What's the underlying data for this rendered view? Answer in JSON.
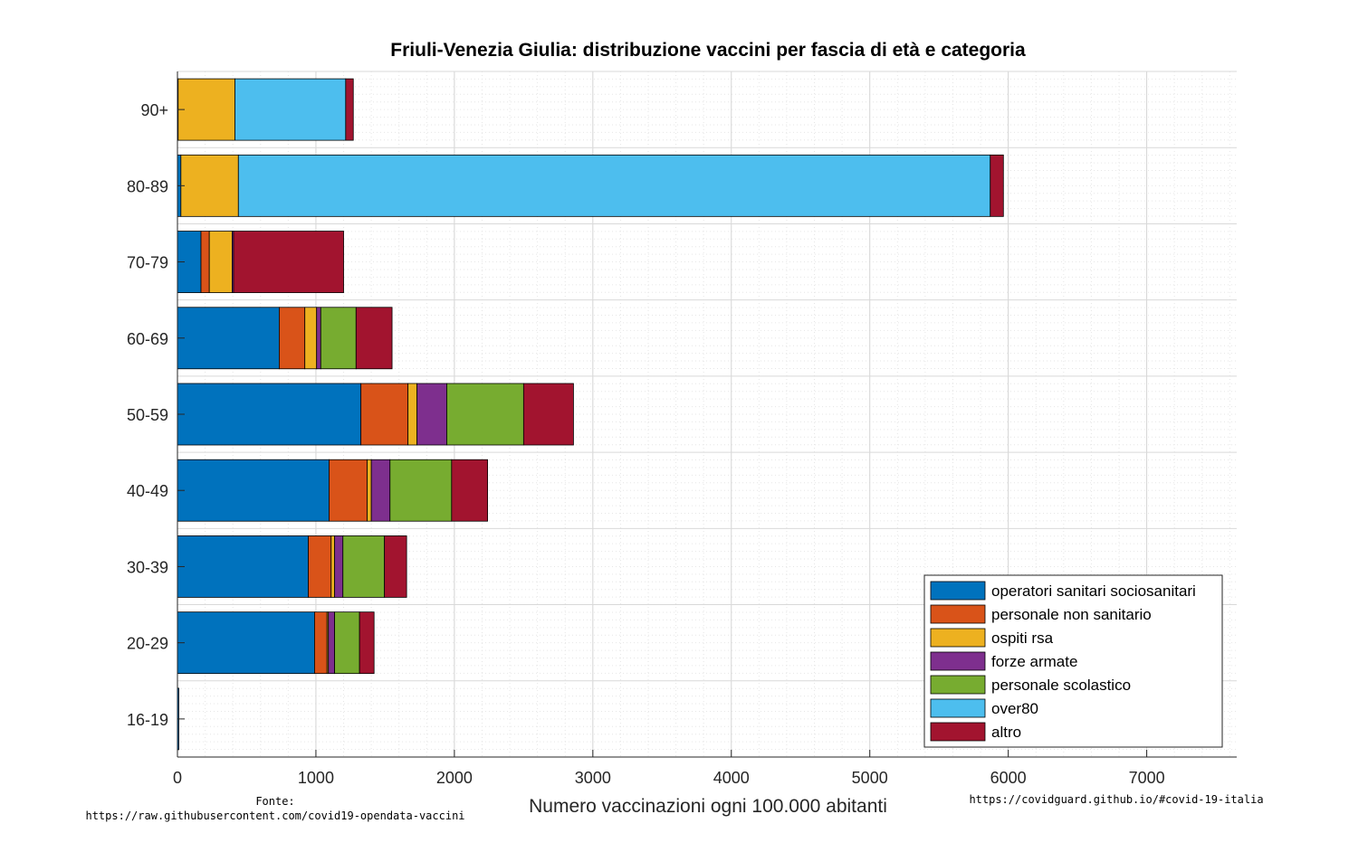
{
  "chart_data": {
    "type": "bar",
    "orientation": "horizontal",
    "stacked": true,
    "title": "Friuli-Venezia Giulia: distribuzione vaccini per fascia di età e categoria",
    "xlabel": "Numero vaccinazioni ogni 100.000 abitanti",
    "ylabel": "",
    "xlim": [
      0,
      7650
    ],
    "xticks": [
      0,
      1000,
      2000,
      3000,
      4000,
      5000,
      6000,
      7000
    ],
    "grid": true,
    "legend_position": "bottom-right",
    "categories": [
      "90+",
      "80-89",
      "70-79",
      "60-69",
      "50-59",
      "40-49",
      "30-39",
      "20-29",
      "16-19"
    ],
    "series": [
      {
        "name": "operatori sanitari sociosanitari",
        "color": "#0072BD",
        "values": [
          5,
          25,
          170,
          735,
          1325,
          1095,
          945,
          990,
          10
        ]
      },
      {
        "name": "personale non sanitario",
        "color": "#D95319",
        "values": [
          0,
          0,
          60,
          185,
          340,
          275,
          165,
          90,
          0
        ]
      },
      {
        "name": "ospiti rsa",
        "color": "#EDB120",
        "values": [
          410,
          415,
          165,
          85,
          65,
          30,
          25,
          10,
          0
        ]
      },
      {
        "name": "forze armate",
        "color": "#7E2F8E",
        "values": [
          0,
          0,
          10,
          30,
          215,
          135,
          60,
          45,
          0
        ]
      },
      {
        "name": "personale scolastico",
        "color": "#77AC30",
        "values": [
          0,
          0,
          0,
          255,
          555,
          445,
          300,
          180,
          0
        ]
      },
      {
        "name": "over80",
        "color": "#4DBEEE",
        "values": [
          800,
          5430,
          0,
          0,
          0,
          0,
          0,
          0,
          0
        ]
      },
      {
        "name": "altro",
        "color": "#A2142F",
        "values": [
          55,
          95,
          795,
          260,
          360,
          260,
          160,
          105,
          0
        ]
      }
    ]
  },
  "annotations": {
    "source_label": "Fonte:",
    "source_url": "https://raw.githubusercontent.com/covid19-opendata-vaccini",
    "site": "https://covidguard.github.io/#covid-19-italia"
  }
}
